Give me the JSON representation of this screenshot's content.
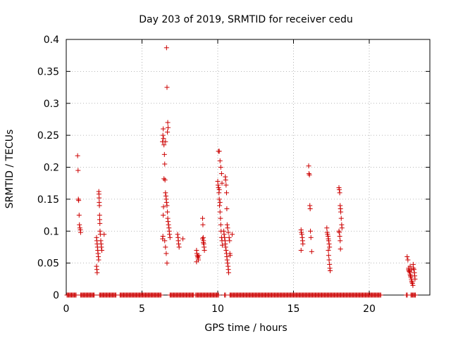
{
  "chart_data": {
    "type": "scatter",
    "title": "Day 203 of 2019, SRMTID for receiver cedu",
    "xlabel": "GPS time / hours",
    "ylabel": "SRMTID / TECUs",
    "xlim": [
      0,
      24
    ],
    "ylim": [
      0,
      0.4
    ],
    "x_ticks": [
      0,
      5,
      10,
      15,
      20
    ],
    "x_tick_labels": [
      "0",
      "5",
      "10",
      "15",
      "20"
    ],
    "y_ticks": [
      0,
      0.05,
      0.1,
      0.15,
      0.2,
      0.25,
      0.3,
      0.35,
      0.4
    ],
    "y_tick_labels": [
      "0",
      "0.05",
      "0.1",
      "0.15",
      "0.2",
      "0.25",
      "0.3",
      "0.35",
      "0.4"
    ],
    "grid": true,
    "marker": "+",
    "color": "#cc0000",
    "series": [
      {
        "name": "SRMTID",
        "points": [
          [
            0.75,
            0.218
          ],
          [
            0.78,
            0.195
          ],
          [
            0.8,
            0.15
          ],
          [
            0.82,
            0.148
          ],
          [
            0.85,
            0.125
          ],
          [
            0.87,
            0.11
          ],
          [
            0.9,
            0.105
          ],
          [
            0.93,
            0.102
          ],
          [
            0.95,
            0.098
          ],
          [
            2.0,
            0.09
          ],
          [
            2.02,
            0.085
          ],
          [
            2.04,
            0.08
          ],
          [
            2.06,
            0.075
          ],
          [
            2.08,
            0.07
          ],
          [
            2.1,
            0.065
          ],
          [
            2.12,
            0.06
          ],
          [
            2.14,
            0.055
          ],
          [
            2.0,
            0.045
          ],
          [
            2.02,
            0.04
          ],
          [
            2.04,
            0.035
          ],
          [
            2.15,
            0.162
          ],
          [
            2.16,
            0.158
          ],
          [
            2.17,
            0.152
          ],
          [
            2.18,
            0.145
          ],
          [
            2.19,
            0.14
          ],
          [
            2.2,
            0.125
          ],
          [
            2.21,
            0.118
          ],
          [
            2.22,
            0.112
          ],
          [
            2.23,
            0.1
          ],
          [
            2.25,
            0.095
          ],
          [
            2.28,
            0.085
          ],
          [
            2.3,
            0.08
          ],
          [
            2.32,
            0.075
          ],
          [
            2.35,
            0.07
          ],
          [
            2.5,
            0.095
          ],
          [
            6.35,
            0.24
          ],
          [
            6.38,
            0.25
          ],
          [
            6.4,
            0.26
          ],
          [
            6.42,
            0.245
          ],
          [
            6.45,
            0.235
          ],
          [
            6.48,
            0.22
          ],
          [
            6.5,
            0.205
          ],
          [
            6.52,
            0.18
          ],
          [
            6.55,
            0.16
          ],
          [
            6.58,
            0.155
          ],
          [
            6.6,
            0.15
          ],
          [
            6.62,
            0.145
          ],
          [
            6.65,
            0.14
          ],
          [
            6.68,
            0.13
          ],
          [
            6.7,
            0.12
          ],
          [
            6.72,
            0.115
          ],
          [
            6.75,
            0.11
          ],
          [
            6.78,
            0.105
          ],
          [
            6.8,
            0.1
          ],
          [
            6.82,
            0.095
          ],
          [
            6.85,
            0.09
          ],
          [
            6.5,
            0.085
          ],
          [
            6.55,
            0.075
          ],
          [
            6.6,
            0.065
          ],
          [
            6.65,
            0.05
          ],
          [
            6.62,
            0.387
          ],
          [
            6.65,
            0.325
          ],
          [
            6.7,
            0.27
          ],
          [
            6.72,
            0.262
          ],
          [
            6.68,
            0.255
          ],
          [
            6.55,
            0.24
          ],
          [
            6.45,
            0.182
          ],
          [
            6.42,
            0.138
          ],
          [
            6.4,
            0.125
          ],
          [
            6.38,
            0.092
          ],
          [
            6.36,
            0.088
          ],
          [
            7.35,
            0.095
          ],
          [
            7.38,
            0.09
          ],
          [
            7.4,
            0.085
          ],
          [
            7.42,
            0.08
          ],
          [
            7.45,
            0.075
          ],
          [
            7.7,
            0.088
          ],
          [
            8.6,
            0.07
          ],
          [
            8.62,
            0.065
          ],
          [
            8.65,
            0.062
          ],
          [
            8.68,
            0.06
          ],
          [
            8.7,
            0.058
          ],
          [
            8.72,
            0.055
          ],
          [
            8.75,
            0.062
          ],
          [
            8.6,
            0.052
          ],
          [
            9.0,
            0.12
          ],
          [
            9.02,
            0.11
          ],
          [
            9.04,
            0.09
          ],
          [
            9.06,
            0.085
          ],
          [
            9.08,
            0.08
          ],
          [
            9.1,
            0.075
          ],
          [
            9.12,
            0.07
          ],
          [
            9.0,
            0.088
          ],
          [
            9.05,
            0.082
          ],
          [
            10.0,
            0.178
          ],
          [
            10.02,
            0.172
          ],
          [
            10.05,
            0.168
          ],
          [
            10.08,
            0.16
          ],
          [
            10.1,
            0.15
          ],
          [
            10.12,
            0.14
          ],
          [
            10.15,
            0.13
          ],
          [
            10.18,
            0.12
          ],
          [
            10.2,
            0.11
          ],
          [
            10.22,
            0.1
          ],
          [
            10.25,
            0.09
          ],
          [
            10.28,
            0.085
          ],
          [
            10.3,
            0.078
          ],
          [
            10.05,
            0.225
          ],
          [
            10.1,
            0.225
          ],
          [
            10.15,
            0.21
          ],
          [
            10.2,
            0.2
          ],
          [
            10.25,
            0.19
          ],
          [
            10.28,
            0.175
          ],
          [
            10.1,
            0.165
          ],
          [
            10.15,
            0.145
          ],
          [
            10.4,
            0.1
          ],
          [
            10.42,
            0.095
          ],
          [
            10.45,
            0.09
          ],
          [
            10.48,
            0.085
          ],
          [
            10.5,
            0.08
          ],
          [
            10.52,
            0.075
          ],
          [
            10.55,
            0.07
          ],
          [
            10.58,
            0.065
          ],
          [
            10.6,
            0.06
          ],
          [
            10.62,
            0.055
          ],
          [
            10.65,
            0.05
          ],
          [
            10.68,
            0.045
          ],
          [
            10.7,
            0.04
          ],
          [
            10.72,
            0.035
          ],
          [
            10.5,
            0.185
          ],
          [
            10.52,
            0.18
          ],
          [
            10.55,
            0.172
          ],
          [
            10.58,
            0.16
          ],
          [
            10.6,
            0.135
          ],
          [
            10.62,
            0.11
          ],
          [
            10.65,
            0.105
          ],
          [
            10.7,
            0.098
          ],
          [
            10.75,
            0.09
          ],
          [
            10.78,
            0.085
          ],
          [
            10.8,
            0.065
          ],
          [
            10.82,
            0.062
          ],
          [
            10.95,
            0.095
          ],
          [
            15.5,
            0.102
          ],
          [
            15.52,
            0.098
          ],
          [
            15.55,
            0.095
          ],
          [
            15.58,
            0.09
          ],
          [
            15.6,
            0.085
          ],
          [
            15.62,
            0.08
          ],
          [
            15.5,
            0.07
          ],
          [
            16.0,
            0.202
          ],
          [
            16.02,
            0.19
          ],
          [
            16.05,
            0.188
          ],
          [
            16.08,
            0.14
          ],
          [
            16.1,
            0.135
          ],
          [
            16.12,
            0.1
          ],
          [
            16.15,
            0.09
          ],
          [
            16.2,
            0.068
          ],
          [
            17.2,
            0.105
          ],
          [
            17.22,
            0.098
          ],
          [
            17.25,
            0.095
          ],
          [
            17.28,
            0.092
          ],
          [
            17.3,
            0.088
          ],
          [
            17.32,
            0.085
          ],
          [
            17.35,
            0.08
          ],
          [
            17.38,
            0.075
          ],
          [
            17.3,
            0.07
          ],
          [
            17.32,
            0.062
          ],
          [
            17.35,
            0.055
          ],
          [
            17.38,
            0.048
          ],
          [
            17.4,
            0.042
          ],
          [
            17.42,
            0.038
          ],
          [
            18.0,
            0.168
          ],
          [
            18.02,
            0.165
          ],
          [
            18.05,
            0.16
          ],
          [
            18.08,
            0.14
          ],
          [
            18.1,
            0.135
          ],
          [
            18.12,
            0.13
          ],
          [
            18.15,
            0.12
          ],
          [
            18.18,
            0.11
          ],
          [
            18.2,
            0.105
          ],
          [
            18.0,
            0.1
          ],
          [
            18.02,
            0.098
          ],
          [
            18.05,
            0.092
          ],
          [
            18.08,
            0.085
          ],
          [
            18.1,
            0.072
          ],
          [
            22.5,
            0.06
          ],
          [
            22.55,
            0.055
          ],
          [
            22.6,
            0.04
          ],
          [
            22.62,
            0.038
          ],
          [
            22.65,
            0.037
          ],
          [
            22.68,
            0.035
          ],
          [
            22.7,
            0.032
          ],
          [
            22.72,
            0.03
          ],
          [
            22.75,
            0.028
          ],
          [
            22.78,
            0.025
          ],
          [
            22.8,
            0.022
          ],
          [
            22.82,
            0.02
          ],
          [
            22.85,
            0.018
          ],
          [
            22.88,
            0.015
          ],
          [
            22.9,
            0.048
          ],
          [
            22.92,
            0.042
          ],
          [
            22.95,
            0.04
          ],
          [
            22.98,
            0.035
          ],
          [
            23.0,
            0.03
          ],
          [
            23.02,
            0.025
          ],
          [
            22.6,
            0.042
          ],
          [
            22.7,
            0.045
          ],
          [
            22.8,
            0.04
          ]
        ]
      }
    ],
    "zero_baseline_intervals": [
      [
        0.05,
        0.65
      ],
      [
        0.95,
        1.85
      ],
      [
        2.2,
        3.3
      ],
      [
        3.55,
        6.3
      ],
      [
        6.85,
        8.45
      ],
      [
        8.55,
        10.1
      ],
      [
        10.45,
        10.55
      ],
      [
        10.8,
        20.8
      ],
      [
        22.45,
        22.55
      ],
      [
        22.75,
        23.05
      ]
    ]
  }
}
